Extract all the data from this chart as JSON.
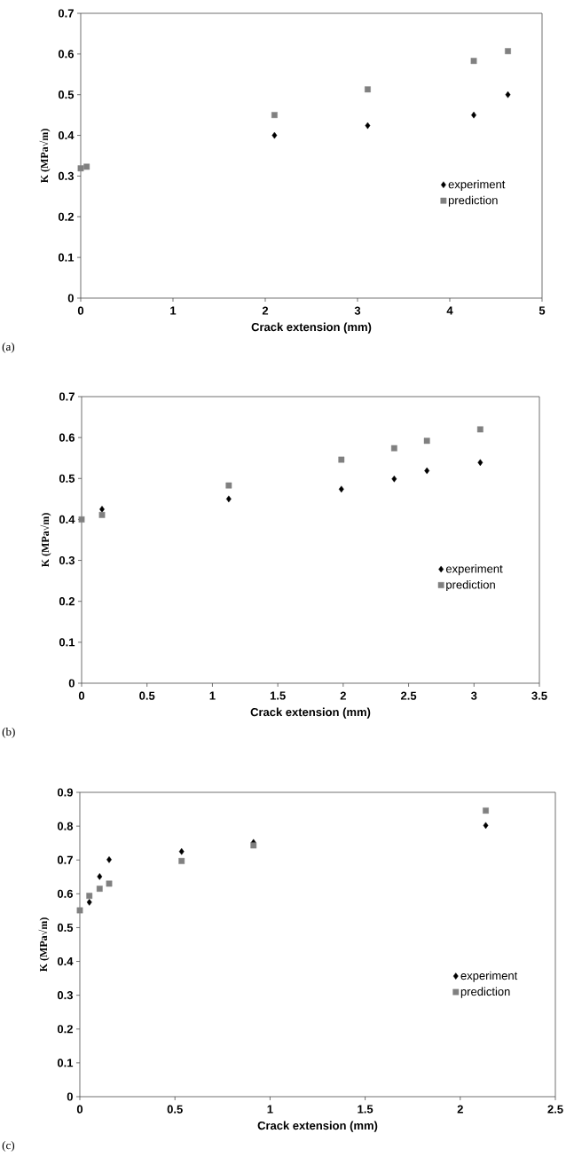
{
  "chart_data": [
    {
      "type": "scatter",
      "xlabel": "Crack extension (mm)",
      "ylabel": "K (MPa√m)",
      "xlim": [
        0,
        5
      ],
      "ylim": [
        0,
        0.7
      ],
      "xticks": [
        0,
        1,
        2,
        3,
        4,
        5
      ],
      "yticks": [
        0,
        0.1,
        0.2,
        0.3,
        0.4,
        0.5,
        0.6,
        0.7
      ],
      "grid": false,
      "legend": "right",
      "annotations": [
        "(a)"
      ],
      "series": [
        {
          "name": "experiment",
          "color": "#000000",
          "marker": "diamond",
          "x": [
            2.1,
            3.11,
            4.26,
            4.63
          ],
          "values": [
            0.4,
            0.424,
            0.45,
            0.5
          ]
        },
        {
          "name": "prediction",
          "color": "#808080",
          "marker": "square",
          "x": [
            0,
            0.064,
            2.1,
            3.11,
            4.26,
            4.63
          ],
          "values": [
            0.319,
            0.323,
            0.45,
            0.513,
            0.583,
            0.607
          ]
        }
      ]
    },
    {
      "type": "scatter",
      "xlabel": "Crack extension (mm)",
      "ylabel": "K (MPa√m)",
      "xlim": [
        0,
        3.5
      ],
      "ylim": [
        0,
        0.7
      ],
      "xticks": [
        0,
        0.5,
        1,
        1.5,
        2,
        2.5,
        3,
        3.5
      ],
      "yticks": [
        0,
        0.1,
        0.2,
        0.3,
        0.4,
        0.5,
        0.6,
        0.7
      ],
      "grid": false,
      "legend": "right",
      "annotations": [
        "(b)"
      ],
      "series": [
        {
          "name": "experiment",
          "color": "#000000",
          "marker": "diamond",
          "x": [
            0.156,
            1.125,
            1.986,
            2.39,
            2.64,
            3.048
          ],
          "values": [
            0.425,
            0.45,
            0.474,
            0.499,
            0.519,
            0.539
          ]
        },
        {
          "name": "prediction",
          "color": "#808080",
          "marker": "square",
          "x": [
            0,
            0.156,
            1.125,
            1.986,
            2.39,
            2.64,
            3.048
          ],
          "values": [
            0.4,
            0.411,
            0.483,
            0.546,
            0.574,
            0.592,
            0.62
          ]
        }
      ]
    },
    {
      "type": "scatter",
      "xlabel": "Crack extension (mm)",
      "ylabel": "K (MPa√m)",
      "xlim": [
        0,
        2.5
      ],
      "ylim": [
        0,
        0.9
      ],
      "xticks": [
        0,
        0.5,
        1,
        1.5,
        2,
        2.5
      ],
      "yticks": [
        0,
        0.1,
        0.2,
        0.3,
        0.4,
        0.5,
        0.6,
        0.7,
        0.8,
        0.9
      ],
      "grid": false,
      "legend": "right",
      "annotations": [
        "(c)"
      ],
      "series": [
        {
          "name": "experiment",
          "color": "#000000",
          "marker": "diamond",
          "x": [
            0.05,
            0.104,
            0.154,
            0.535,
            0.913,
            2.134
          ],
          "values": [
            0.575,
            0.651,
            0.701,
            0.725,
            0.752,
            0.802
          ]
        },
        {
          "name": "prediction",
          "color": "#808080",
          "marker": "square",
          "x": [
            0,
            0.05,
            0.104,
            0.154,
            0.535,
            0.913,
            2.134
          ],
          "values": [
            0.551,
            0.594,
            0.615,
            0.63,
            0.697,
            0.743,
            0.846
          ]
        }
      ]
    }
  ]
}
